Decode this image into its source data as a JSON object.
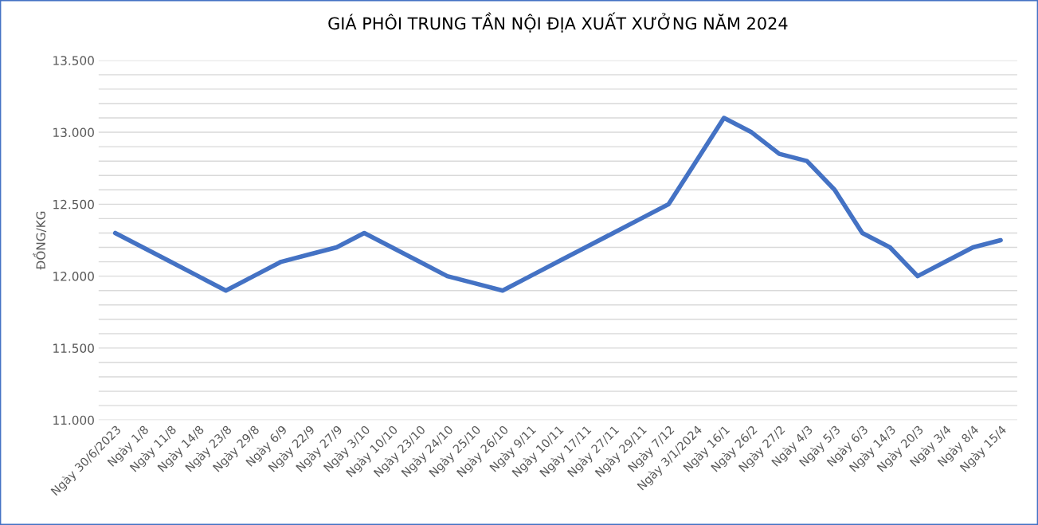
{
  "chart_data": {
    "type": "line",
    "title": "GIÁ PHÔI TRUNG TẦN NỘI ĐỊA XUẤT XƯỞNG NĂM 2024",
    "ylabel": "ĐỒNG/KG",
    "categories": [
      "Ngày 30/6/2023",
      "Ngày 1/8",
      "Ngày 11/8",
      "Ngày 14/8",
      "Ngày 23/8",
      "Ngày 29/8",
      "Ngày 6/9",
      "Ngày 22/9",
      "Ngày 27/9",
      "Ngày 3/10",
      "Ngày 10/10",
      "Ngày 23/10",
      "Ngày 24/10",
      "Ngày 25/10",
      "Ngày 26/10",
      "Ngày 9/11",
      "Ngày 10/11",
      "Ngày 17/11",
      "Ngày 27/11",
      "Ngày 29/11",
      "Ngày 7/12",
      "Ngày 3/1/2024",
      "Ngày 16/1",
      "Ngày 26/2",
      "Ngày 27/2",
      "Ngày 4/3",
      "Ngày 5/3",
      "Ngày 6/3",
      "Ngày 14/3",
      "Ngày 20/3",
      "Ngày 3/4",
      "Ngày 8/4",
      "Ngày 15/4"
    ],
    "series": [
      {
        "color": "#4472c4",
        "values": [
          12300,
          12200,
          12100,
          12000,
          11900,
          12000,
          12100,
          12150,
          12200,
          12300,
          12200,
          12100,
          12000,
          11950,
          11900,
          12000,
          12100,
          12200,
          12300,
          12400,
          12500,
          12800,
          13100,
          13000,
          12850,
          12800,
          12600,
          12300,
          12200,
          12000,
          12100,
          12200,
          12250
        ]
      }
    ],
    "ylim": [
      11000,
      13500
    ],
    "yticks": [
      {
        "value": 11000,
        "label": "11.000"
      },
      {
        "value": 11100,
        "label": null
      },
      {
        "value": 11200,
        "label": null
      },
      {
        "value": 11300,
        "label": null
      },
      {
        "value": 11400,
        "label": null
      },
      {
        "value": 11500,
        "label": "11.500"
      },
      {
        "value": 11600,
        "label": null
      },
      {
        "value": 11700,
        "label": null
      },
      {
        "value": 11800,
        "label": null
      },
      {
        "value": 11900,
        "label": null
      },
      {
        "value": 12000,
        "label": "12.000"
      },
      {
        "value": 12100,
        "label": null
      },
      {
        "value": 12200,
        "label": null
      },
      {
        "value": 12300,
        "label": null
      },
      {
        "value": 12400,
        "label": null
      },
      {
        "value": 12500,
        "label": "12.500"
      },
      {
        "value": 12600,
        "label": null
      },
      {
        "value": 12700,
        "label": null
      },
      {
        "value": 12800,
        "label": null
      },
      {
        "value": 12900,
        "label": null
      },
      {
        "value": 13000,
        "label": "13.000"
      },
      {
        "value": 13100,
        "label": null
      },
      {
        "value": 13200,
        "label": null
      },
      {
        "value": 13300,
        "label": null
      },
      {
        "value": 13400,
        "label": null
      },
      {
        "value": 13500,
        "label": "13.500"
      }
    ],
    "grid": "y",
    "marker": "none",
    "line_style": "solid",
    "legend": false
  }
}
